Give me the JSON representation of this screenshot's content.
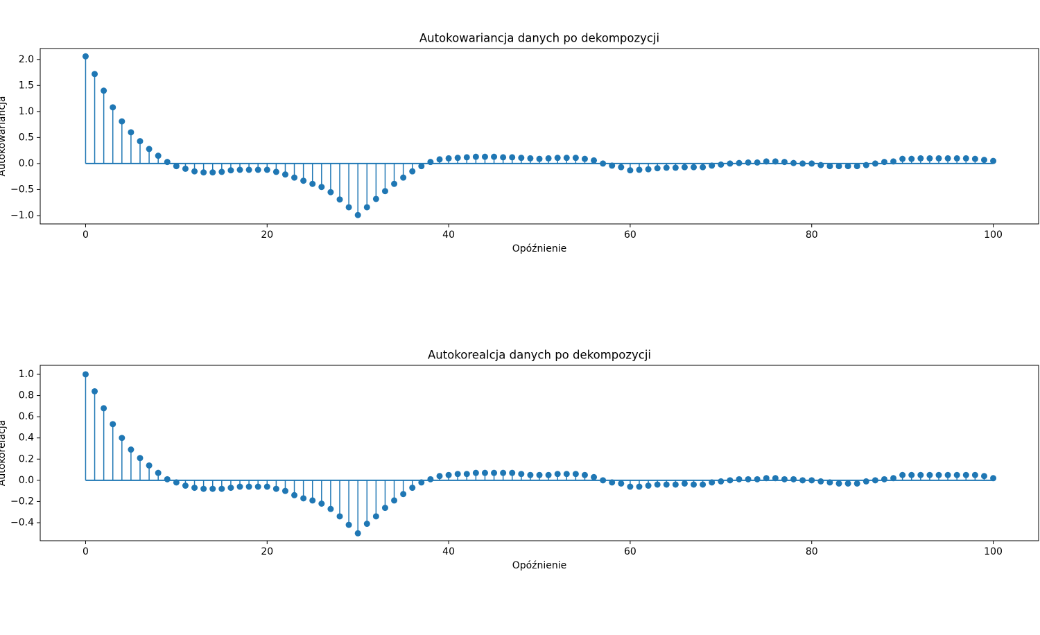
{
  "chart_data": [
    {
      "type": "stem",
      "title": "Autokowariancja danych po dekompozycji",
      "x_label": "Opóźnienie",
      "y_label": "Autokowariancja",
      "color": "#1f77b4",
      "x": [
        0,
        1,
        2,
        3,
        4,
        5,
        6,
        7,
        8,
        9,
        10,
        11,
        12,
        13,
        14,
        15,
        16,
        17,
        18,
        19,
        20,
        21,
        22,
        23,
        24,
        25,
        26,
        27,
        28,
        29,
        30,
        31,
        32,
        33,
        34,
        35,
        36,
        37,
        38,
        39,
        40,
        41,
        42,
        43,
        44,
        45,
        46,
        47,
        48,
        49,
        50,
        51,
        52,
        53,
        54,
        55,
        56,
        57,
        58,
        59,
        60,
        61,
        62,
        63,
        64,
        65,
        66,
        67,
        68,
        69,
        70,
        71,
        72,
        73,
        74,
        75,
        76,
        77,
        78,
        79,
        80,
        81,
        82,
        83,
        84,
        85,
        86,
        87,
        88,
        89,
        90,
        91,
        92,
        93,
        94,
        95,
        96,
        97,
        98,
        99,
        100
      ],
      "values": [
        2.06,
        1.72,
        1.4,
        1.08,
        0.81,
        0.6,
        0.43,
        0.28,
        0.15,
        0.03,
        -0.05,
        -0.1,
        -0.15,
        -0.17,
        -0.17,
        -0.16,
        -0.13,
        -0.12,
        -0.12,
        -0.12,
        -0.12,
        -0.16,
        -0.21,
        -0.27,
        -0.33,
        -0.39,
        -0.45,
        -0.55,
        -0.69,
        -0.84,
        -0.99,
        -0.84,
        -0.68,
        -0.53,
        -0.39,
        -0.27,
        -0.15,
        -0.05,
        0.03,
        0.08,
        0.1,
        0.11,
        0.12,
        0.13,
        0.13,
        0.13,
        0.12,
        0.12,
        0.11,
        0.1,
        0.09,
        0.1,
        0.11,
        0.11,
        0.11,
        0.09,
        0.06,
        0.0,
        -0.04,
        -0.07,
        -0.13,
        -0.12,
        -0.11,
        -0.09,
        -0.08,
        -0.08,
        -0.07,
        -0.07,
        -0.07,
        -0.04,
        -0.02,
        0.0,
        0.01,
        0.02,
        0.02,
        0.04,
        0.04,
        0.03,
        0.01,
        0.0,
        0.0,
        -0.03,
        -0.05,
        -0.05,
        -0.05,
        -0.05,
        -0.03,
        0.0,
        0.03,
        0.04,
        0.09,
        0.09,
        0.1,
        0.1,
        0.1,
        0.1,
        0.1,
        0.1,
        0.09,
        0.07,
        0.05
      ],
      "xlim": [
        -5,
        105
      ],
      "xticks": [
        0,
        20,
        40,
        60,
        80,
        100
      ],
      "ylim": [
        -1.16,
        2.21
      ],
      "yticks": [
        {
          "value": -1.0,
          "label": "−1.0"
        },
        {
          "value": -0.5,
          "label": "−0.5"
        },
        {
          "value": 0.0,
          "label": "0.0"
        },
        {
          "value": 0.5,
          "label": "0.5"
        },
        {
          "value": 1.0,
          "label": "1.0"
        },
        {
          "value": 1.5,
          "label": "1.5"
        },
        {
          "value": 2.0,
          "label": "2.0"
        }
      ]
    },
    {
      "type": "stem",
      "title": "Autokorealcja danych po dekompozycji",
      "x_label": "Opóźnienie",
      "y_label": "Autokorelacja",
      "color": "#1f77b4",
      "x": [
        0,
        1,
        2,
        3,
        4,
        5,
        6,
        7,
        8,
        9,
        10,
        11,
        12,
        13,
        14,
        15,
        16,
        17,
        18,
        19,
        20,
        21,
        22,
        23,
        24,
        25,
        26,
        27,
        28,
        29,
        30,
        31,
        32,
        33,
        34,
        35,
        36,
        37,
        38,
        39,
        40,
        41,
        42,
        43,
        44,
        45,
        46,
        47,
        48,
        49,
        50,
        51,
        52,
        53,
        54,
        55,
        56,
        57,
        58,
        59,
        60,
        61,
        62,
        63,
        64,
        65,
        66,
        67,
        68,
        69,
        70,
        71,
        72,
        73,
        74,
        75,
        76,
        77,
        78,
        79,
        80,
        81,
        82,
        83,
        84,
        85,
        86,
        87,
        88,
        89,
        90,
        91,
        92,
        93,
        94,
        95,
        96,
        97,
        98,
        99,
        100
      ],
      "values": [
        1.0,
        0.84,
        0.68,
        0.53,
        0.4,
        0.29,
        0.21,
        0.14,
        0.07,
        0.01,
        -0.02,
        -0.05,
        -0.07,
        -0.08,
        -0.08,
        -0.08,
        -0.07,
        -0.06,
        -0.06,
        -0.06,
        -0.06,
        -0.08,
        -0.1,
        -0.14,
        -0.17,
        -0.19,
        -0.22,
        -0.27,
        -0.34,
        -0.42,
        -0.5,
        -0.41,
        -0.34,
        -0.26,
        -0.19,
        -0.13,
        -0.07,
        -0.02,
        0.01,
        0.04,
        0.05,
        0.06,
        0.06,
        0.07,
        0.07,
        0.07,
        0.07,
        0.07,
        0.06,
        0.05,
        0.05,
        0.05,
        0.06,
        0.06,
        0.06,
        0.05,
        0.03,
        0.0,
        -0.02,
        -0.03,
        -0.06,
        -0.06,
        -0.05,
        -0.04,
        -0.04,
        -0.04,
        -0.03,
        -0.04,
        -0.04,
        -0.02,
        -0.01,
        0.0,
        0.01,
        0.01,
        0.01,
        0.02,
        0.02,
        0.01,
        0.01,
        0.0,
        0.0,
        -0.01,
        -0.02,
        -0.03,
        -0.03,
        -0.03,
        -0.01,
        0.0,
        0.01,
        0.02,
        0.05,
        0.05,
        0.05,
        0.05,
        0.05,
        0.05,
        0.05,
        0.05,
        0.05,
        0.04,
        0.02
      ],
      "xlim": [
        -5,
        105
      ],
      "xticks": [
        0,
        20,
        40,
        60,
        80,
        100
      ],
      "ylim": [
        -0.57,
        1.085
      ],
      "yticks": [
        {
          "value": -0.4,
          "label": "−0.4"
        },
        {
          "value": -0.2,
          "label": "−0.2"
        },
        {
          "value": 0.0,
          "label": "0.0"
        },
        {
          "value": 0.2,
          "label": "0.2"
        },
        {
          "value": 0.4,
          "label": "0.4"
        },
        {
          "value": 0.6,
          "label": "0.6"
        },
        {
          "value": 0.8,
          "label": "0.8"
        },
        {
          "value": 1.0,
          "label": "1.0"
        }
      ]
    }
  ]
}
